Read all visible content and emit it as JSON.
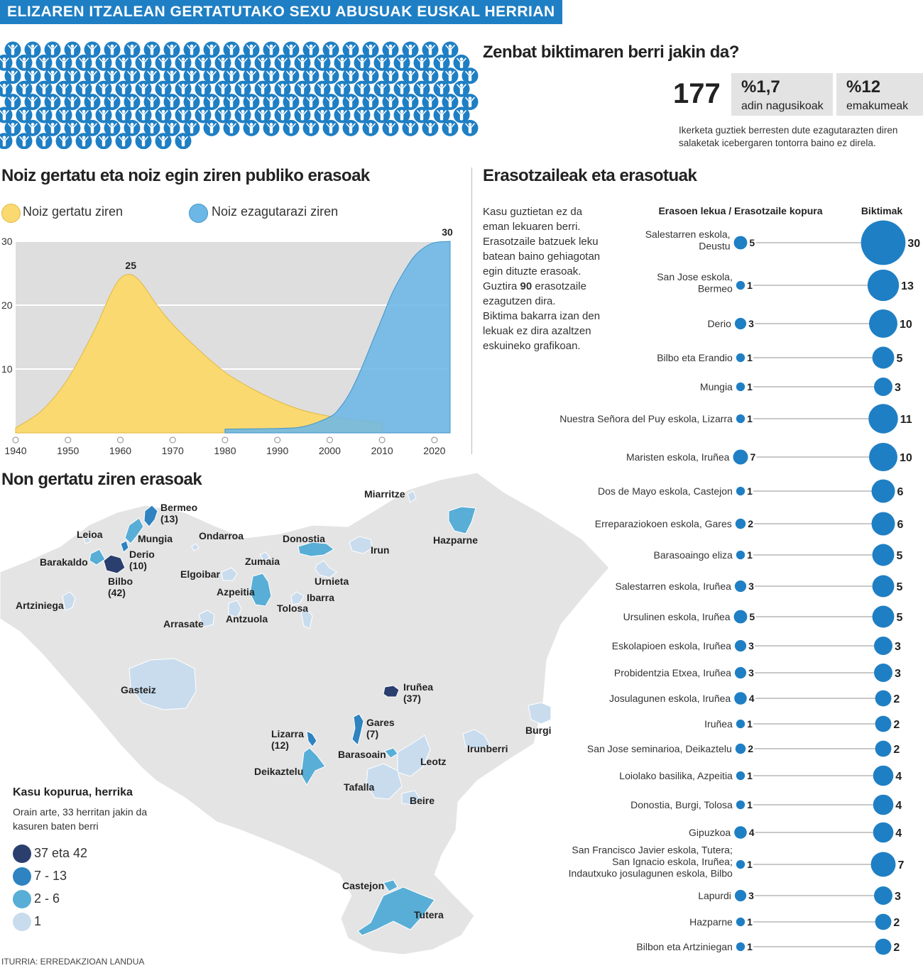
{
  "banner": "ELIZAREN ITZALEAN GERTATUTAKO SEXU ABUSUAK EUSKAL HERRIAN",
  "victims": {
    "title": "Zenbat biktimaren berri jakin da?",
    "icon": "person-icon",
    "icon_color": "#1f7fc4",
    "total": "177",
    "adults_pct": "%1,7",
    "adults_label": "adin nagusikoak",
    "women_pct": "%12",
    "women_label": "emakumeak",
    "note": "Ikerketa guztiek berresten dute ezagutarazten diren salaketak icebergaren tontorra baino ez direla."
  },
  "timeline": {
    "title": "Noiz gertatu eta noiz egin ziren publiko erasoak",
    "legend_occurred": "Noiz gertatu ziren",
    "legend_published": "Noiz ezagutarazi ziren"
  },
  "chart_data": [
    {
      "type": "area",
      "title": "Noiz gertatu eta noiz egin ziren publiko erasoak",
      "xlim": [
        1940,
        2023
      ],
      "ylim": [
        0,
        30
      ],
      "x_ticks": [
        "1940",
        "1950",
        "1960",
        "1970",
        "1980",
        "1990",
        "2000",
        "2010",
        "2020"
      ],
      "y_ticks": [
        "10",
        "20",
        "30"
      ],
      "grid": true,
      "legend_position": "top-left",
      "series": [
        {
          "name": "Noiz gertatu ziren",
          "color": "#fbd971",
          "x": [
            1940,
            1945,
            1950,
            1955,
            1958,
            1960,
            1962,
            1964,
            1967,
            1970,
            1975,
            1980,
            1985,
            1990,
            1995,
            2000,
            2005,
            2010
          ],
          "y": [
            0.8,
            3.5,
            8.5,
            16,
            21.5,
            24.2,
            24.8,
            23.5,
            20,
            17,
            13,
            9.5,
            7,
            5,
            3.5,
            2.6,
            2,
            1.7
          ],
          "peak_label": "25"
        },
        {
          "name": "Noiz ezagutarazi ziren",
          "color": "#6cb7e6",
          "x": [
            1980,
            1990,
            1995,
            2000,
            2002,
            2004,
            2006,
            2008,
            2010,
            2012,
            2014,
            2016,
            2018,
            2020,
            2023
          ],
          "y": [
            0.6,
            0.7,
            1.0,
            2.5,
            4,
            6.5,
            10,
            14,
            18,
            22,
            25,
            27.5,
            29,
            29.8,
            30
          ],
          "peak_label": "30"
        }
      ]
    },
    {
      "type": "scatter",
      "title": "Erasotzaileak eta erasotuak",
      "column_left": "Erasoen lekua / Erasotzaile kopura",
      "column_right": "Biktimak",
      "dot_color": "#1f7fc4",
      "rows": [
        {
          "label": [
            "Salestarren eskola,",
            "Deustu"
          ],
          "aggressors": 5,
          "victims": 30
        },
        {
          "label": [
            "San Jose eskola,",
            "Bermeo"
          ],
          "aggressors": 1,
          "victims": 13
        },
        {
          "label": [
            "Derio"
          ],
          "aggressors": 3,
          "victims": 10
        },
        {
          "label": [
            "Bilbo eta Erandio"
          ],
          "aggressors": 1,
          "victims": 5
        },
        {
          "label": [
            "Mungia"
          ],
          "aggressors": 1,
          "victims": 3
        },
        {
          "label": [
            "Nuestra Señora del Puy eskola, Lizarra"
          ],
          "aggressors": 1,
          "victims": 11
        },
        {
          "label": [
            "Maristen eskola, Iruñea"
          ],
          "aggressors": 7,
          "victims": 10
        },
        {
          "label": [
            "Dos de Mayo eskola, Castejon"
          ],
          "aggressors": 1,
          "victims": 6
        },
        {
          "label": [
            "Erreparaziokoen eskola, Gares"
          ],
          "aggressors": 2,
          "victims": 6
        },
        {
          "label": [
            "Barasoaingo eliza"
          ],
          "aggressors": 1,
          "victims": 5
        },
        {
          "label": [
            "Salestarren eskola, Iruñea"
          ],
          "aggressors": 3,
          "victims": 5
        },
        {
          "label": [
            "Ursulinen eskola, Iruñea"
          ],
          "aggressors": 5,
          "victims": 5
        },
        {
          "label": [
            "Eskolapioen eskola, Iruñea"
          ],
          "aggressors": 3,
          "victims": 3
        },
        {
          "label": [
            "Probidentzia Etxea, Iruñea"
          ],
          "aggressors": 3,
          "victims": 3
        },
        {
          "label": [
            "Josulagunen eskola, Iruñea"
          ],
          "aggressors": 4,
          "victims": 2
        },
        {
          "label": [
            "Iruñea"
          ],
          "aggressors": 1,
          "victims": 2
        },
        {
          "label": [
            "San Jose seminarioa, Deikaztelu"
          ],
          "aggressors": 2,
          "victims": 2
        },
        {
          "label": [
            "Loiolako basilika, Azpeitia"
          ],
          "aggressors": 1,
          "victims": 4
        },
        {
          "label": [
            "Donostia, Burgi, Tolosa"
          ],
          "aggressors": 1,
          "victims": 4
        },
        {
          "label": [
            "Gipuzkoa"
          ],
          "aggressors": 4,
          "victims": 4
        },
        {
          "label": [
            "San Francisco Javier eskola, Tutera;",
            "San Ignacio eskola, Iruñea;",
            "Indautxuko josulagunen eskola, Bilbo"
          ],
          "aggressors": 1,
          "victims": 7
        },
        {
          "label": [
            "Lapurdi"
          ],
          "aggressors": 3,
          "victims": 3
        },
        {
          "label": [
            "Hazparne"
          ],
          "aggressors": 1,
          "victims": 2
        },
        {
          "label": [
            "Bilbon eta Artziniegan"
          ],
          "aggressors": 1,
          "victims": 2
        }
      ]
    }
  ],
  "perps": {
    "title": "Erasotzaileak eta erasotuak",
    "text_pre": [
      "Kasu guztietan ez da",
      "eman lekuaren berri.",
      "Erasotzaile batzuek leku",
      "batean baino gehiagotan",
      "egin dituzte erasoak.",
      "Guztira "
    ],
    "text_bold": "90",
    "text_mid": " erasotzaile",
    "text_post": [
      "ezagutzen dira.",
      "Biktima bakarra izan den",
      "lekuak ez dira azaltzen",
      "eskuineko grafikoan."
    ]
  },
  "map": {
    "title": "Non gertatu ziren erasoak",
    "legend_title": "Kasu kopurua, herrika",
    "legend_note": [
      "Orain arte, 33 herritan jakin da",
      "kasuren baten berri"
    ],
    "classes": [
      {
        "label": "37 eta 42",
        "color": "#2a3f6e"
      },
      {
        "label": "7 - 13",
        "color": "#2e83c0"
      },
      {
        "label": "2 - 6",
        "color": "#58aed6"
      },
      {
        "label": "1",
        "color": "#c8dcee"
      }
    ],
    "base_color": "#e4e4e4",
    "places": [
      {
        "name": "Bermeo",
        "extra": "(13)",
        "cls": 1
      },
      {
        "name": "Leioa",
        "cls": 3
      },
      {
        "name": "Mungia",
        "cls": 2
      },
      {
        "name": "Ondarroa",
        "cls": 3
      },
      {
        "name": "Derio",
        "extra": "(10)",
        "cls": 1
      },
      {
        "name": "Barakaldo",
        "cls": 2
      },
      {
        "name": "Bilbo",
        "extra": "(42)",
        "cls": 0
      },
      {
        "name": "Elgoibar",
        "cls": 3
      },
      {
        "name": "Zumaia",
        "cls": 3
      },
      {
        "name": "Donostia",
        "cls": 2
      },
      {
        "name": "Irun",
        "cls": 3
      },
      {
        "name": "Miarritze",
        "cls": 3
      },
      {
        "name": "Hazparne",
        "cls": 2
      },
      {
        "name": "Urnieta",
        "cls": 3
      },
      {
        "name": "Azpeitia",
        "cls": 2
      },
      {
        "name": "Ibarra",
        "cls": 3
      },
      {
        "name": "Tolosa",
        "cls": 3
      },
      {
        "name": "Artziniega",
        "cls": 3
      },
      {
        "name": "Antzuola",
        "cls": 3
      },
      {
        "name": "Arrasate",
        "cls": 3
      },
      {
        "name": "Gasteiz",
        "cls": 3
      },
      {
        "name": "Iruñea",
        "extra": "(37)",
        "cls": 0
      },
      {
        "name": "Gares",
        "extra": "(7)",
        "cls": 1
      },
      {
        "name": "Lizarra",
        "extra": "(12)",
        "cls": 1
      },
      {
        "name": "Burgi",
        "cls": 3
      },
      {
        "name": "Barasoain",
        "cls": 2
      },
      {
        "name": "Irunberri",
        "cls": 3
      },
      {
        "name": "Leotz",
        "cls": 3
      },
      {
        "name": "Deikaztelu",
        "cls": 2
      },
      {
        "name": "Tafalla",
        "cls": 3
      },
      {
        "name": "Beire",
        "cls": 3
      },
      {
        "name": "Castejon",
        "cls": 2
      },
      {
        "name": "Tutera",
        "cls": 2
      }
    ]
  },
  "source": "ITURRIA: ERREDAKZIOAN LANDUA"
}
